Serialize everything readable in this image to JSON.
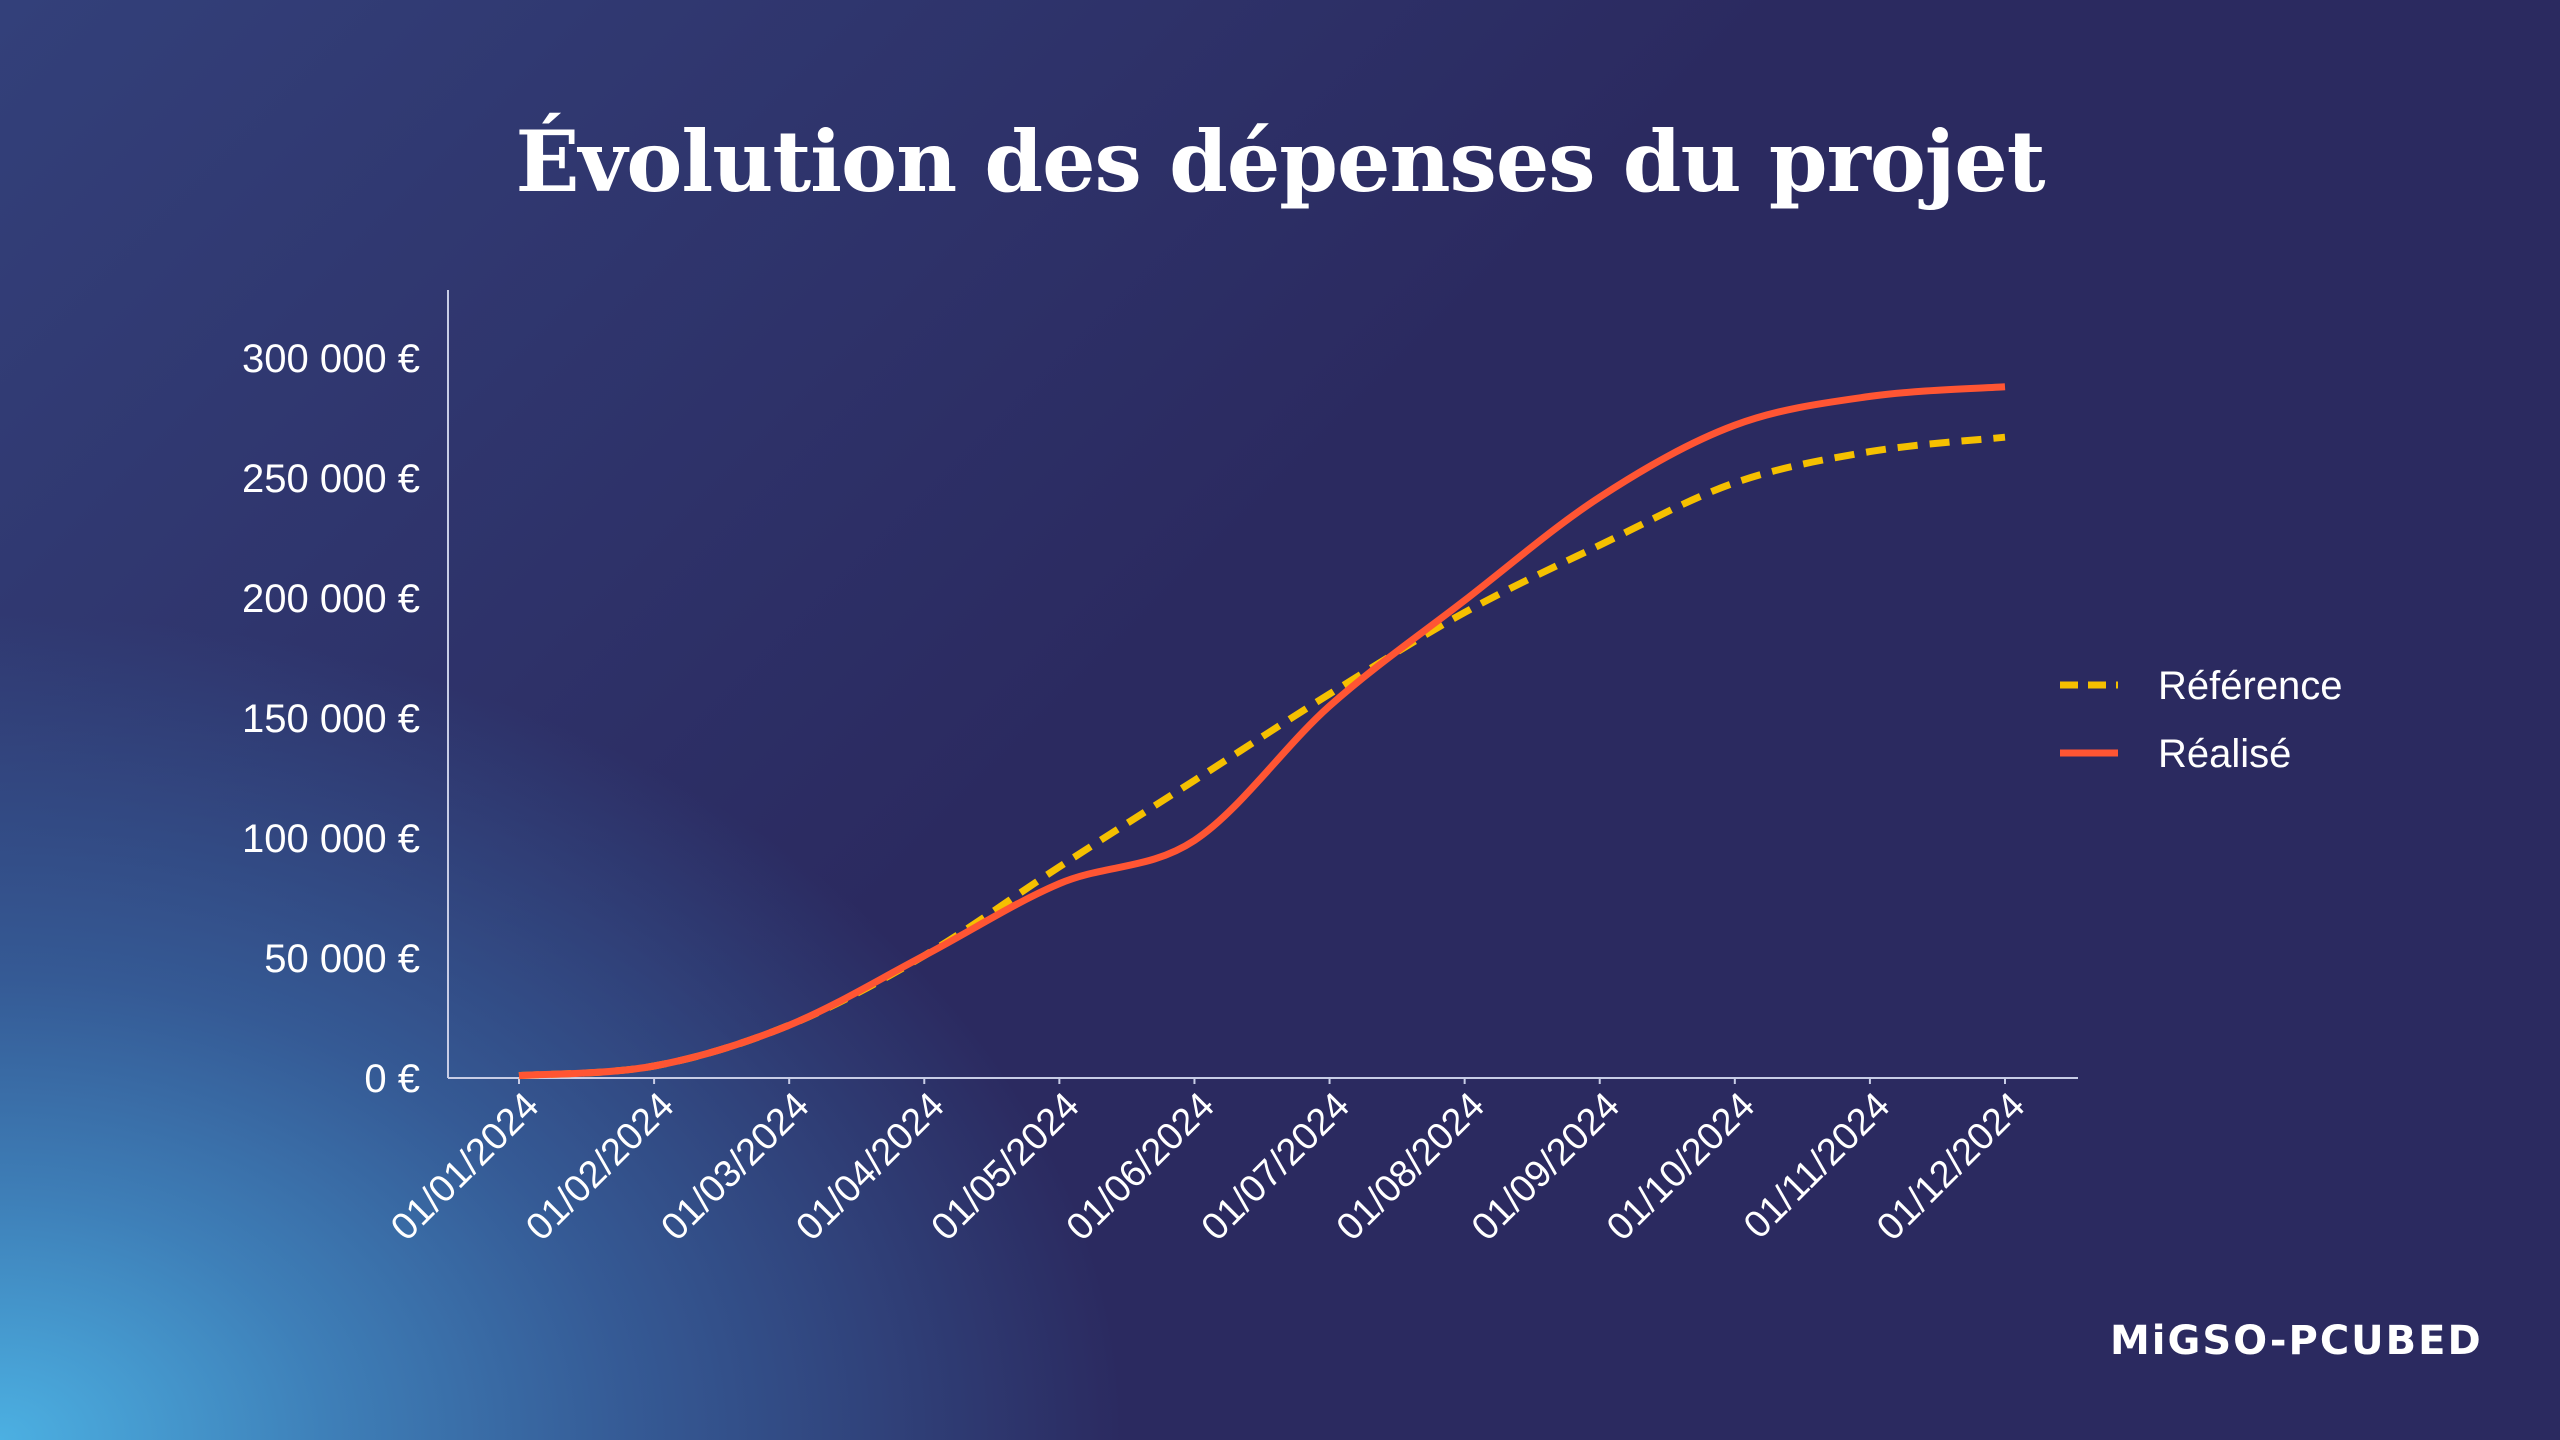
{
  "chart_data": {
    "type": "line",
    "title": "Évolution des dépenses du projet",
    "xlabel": "",
    "ylabel": "",
    "categories": [
      "01/01/2024",
      "01/02/2024",
      "01/03/2024",
      "01/04/2024",
      "01/05/2024",
      "01/06/2024",
      "01/07/2024",
      "01/08/2024",
      "01/09/2024",
      "01/10/2024",
      "01/11/2024",
      "01/12/2024"
    ],
    "ylim": [
      0,
      330000
    ],
    "yticks": [
      0,
      50000,
      100000,
      150000,
      200000,
      250000,
      300000
    ],
    "ytick_labels": [
      "0 €",
      "50 000 €",
      "100 000 €",
      "150 000 €",
      "200 000 €",
      "250 000 €",
      "300 000 €"
    ],
    "grid": false,
    "legend_position": "right",
    "series": [
      {
        "name": "Référence",
        "color": "#f5c000",
        "style": "dashed",
        "values": [
          1000,
          5000,
          22000,
          51000,
          88000,
          124000,
          160000,
          194000,
          222000,
          248000,
          261000,
          267000
        ]
      },
      {
        "name": "Réalisé",
        "color": "#ff5533",
        "style": "solid",
        "values": [
          1000,
          5000,
          22000,
          51000,
          81000,
          99000,
          155000,
          199000,
          242000,
          272000,
          284000,
          288000
        ]
      }
    ]
  },
  "brand": {
    "logo_text": "MiGSO-PCUBED"
  }
}
